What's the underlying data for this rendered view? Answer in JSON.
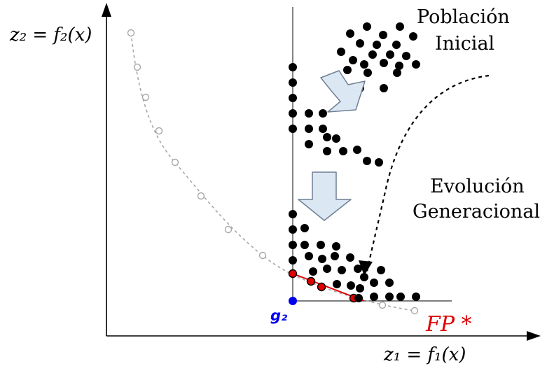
{
  "axes": {
    "y_label": "z₂ = f₂(x)",
    "x_label": "z₁ = f₁(x)"
  },
  "labels": {
    "initial_population": [
      "Población",
      "Inicial"
    ],
    "generational_evolution": [
      "Evolución",
      "Generacional"
    ],
    "pareto_front": "FP *",
    "reference_point": "g₂"
  },
  "colors": {
    "population": "#000000",
    "pareto_front": "#e00000",
    "reference_point": "#0000ee",
    "true_front": "#a0a0a0",
    "arrow_fill": "#dce7f4",
    "arrow_stroke": "#6f7f93"
  }
}
